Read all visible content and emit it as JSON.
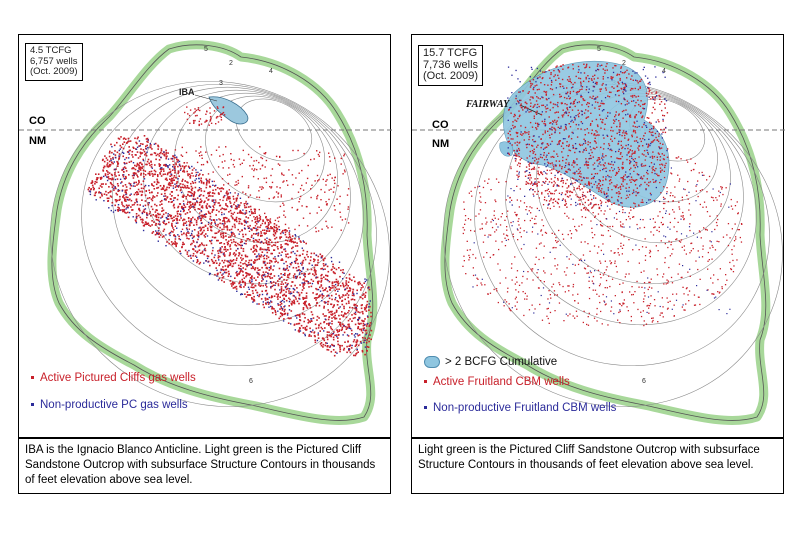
{
  "left": {
    "stats": "4.5 TCFG\n6,757 wells\n(Oct. 2009)",
    "labels": {
      "co": "CO",
      "nm": "NM",
      "iba": "IBA"
    },
    "legend": [
      {
        "text": "Active Pictured Cliffs gas wells",
        "color": "#c8202a"
      },
      {
        "text": "Non-productive PC gas wells",
        "color": "#2b2b9a"
      }
    ],
    "caption": "IBA is the Ignacio Blanco Anticline. Light green is the Pictured Cliff Sandstone Outcrop with subsurface Structure Contours in thousands of feet elevation above sea level."
  },
  "right": {
    "stats": "15.7 TCFG\n7,736 wells\n(Oct. 2009)",
    "labels": {
      "co": "CO",
      "nm": "NM",
      "fairway": "FAIRWAY"
    },
    "legend": [
      {
        "text": "> 2 BCFG Cumulative",
        "color": "#8fc6e0"
      },
      {
        "text": "Active Fruitland CBM wells",
        "color": "#c8202a"
      },
      {
        "text": "Non-productive Fruitland CBM wells",
        "color": "#2b2b9a"
      }
    ],
    "caption": "Light green is the Pictured Cliff Sandstone Outcrop with subsurface Structure Contours in thousands of feet elevation above sea level."
  },
  "contour_labels": [
    "2",
    "3",
    "4",
    "5",
    "6"
  ],
  "colors": {
    "outcrop": "#a8d89a",
    "active": "#c8202a",
    "nonproductive": "#2b2b9a",
    "cumulative": "#8fc6e0",
    "contour": "#8a8a8a"
  }
}
